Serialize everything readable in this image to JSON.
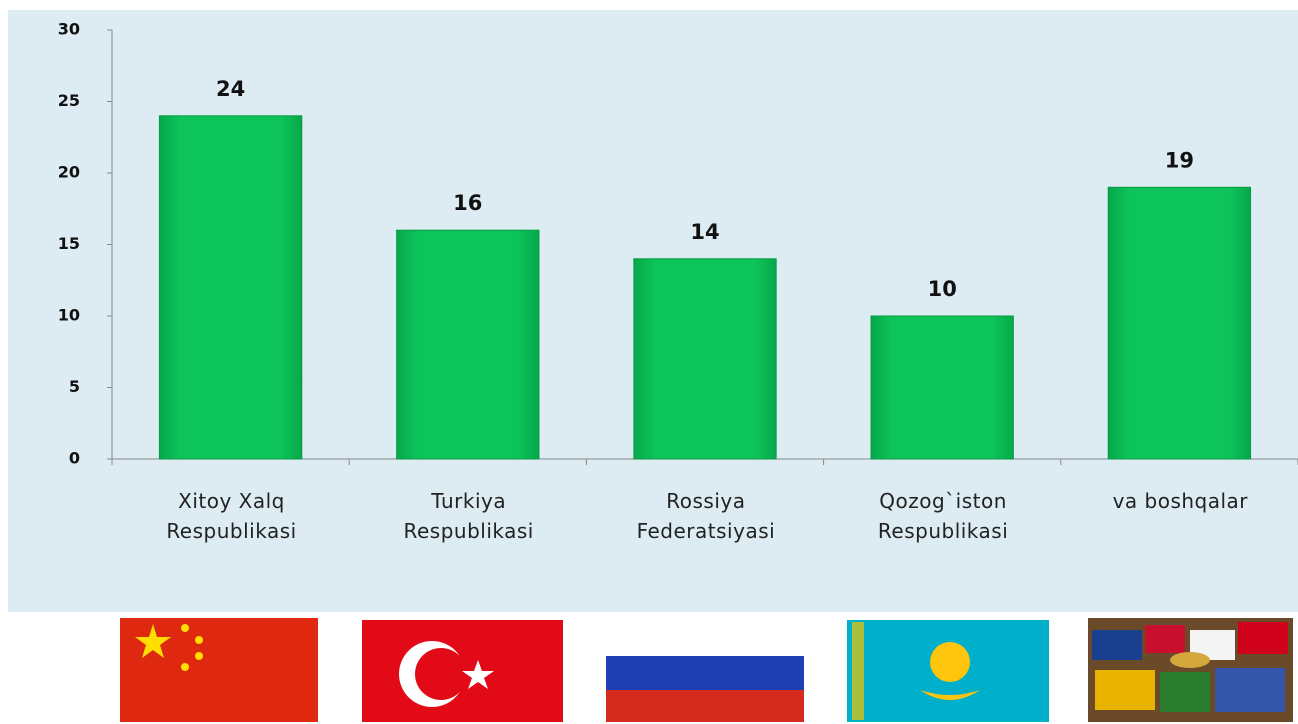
{
  "chart_data": {
    "type": "bar",
    "categories": [
      "Xitoy Xalq\nRespublikasi",
      "Turkiya\nRespublikasi",
      "Rossiya\nFederatsiyasi",
      "Qozog`iston\nRespublikasi",
      "va boshqalar"
    ],
    "values": [
      24,
      16,
      14,
      10,
      19
    ],
    "color": "#0abf55",
    "ylim": [
      0,
      30
    ],
    "yticks": [
      0,
      5,
      10,
      15,
      20,
      25,
      30
    ],
    "grid": false
  }
}
